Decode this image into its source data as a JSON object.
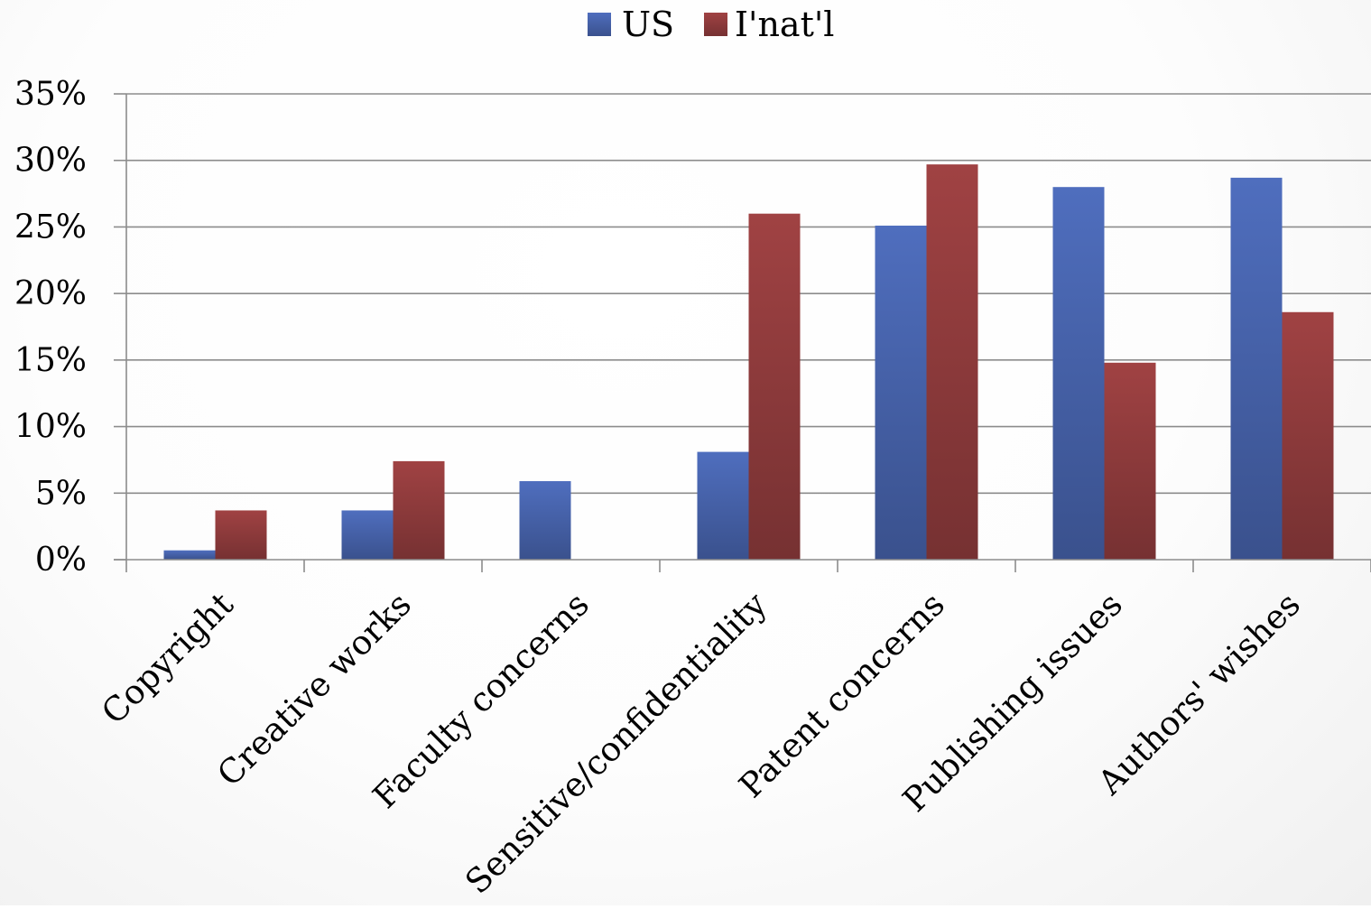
{
  "chart_data": {
    "type": "bar",
    "title": "",
    "xlabel": "",
    "ylabel": "",
    "ylim": [
      0,
      0.35
    ],
    "yticks": [
      0,
      0.05,
      0.1,
      0.15,
      0.2,
      0.25,
      0.3,
      0.35
    ],
    "ytick_labels": [
      "0%",
      "5%",
      "10%",
      "15%",
      "20%",
      "25%",
      "30%",
      "35%"
    ],
    "grid": true,
    "legend_position": "top",
    "categories": [
      "Copyright",
      "Creative works",
      "Faculty concerns",
      "Sensitive/confidentiality",
      "Patent concerns",
      "Publishing issues",
      "Authors' wishes"
    ],
    "series": [
      {
        "name": "US",
        "color": "#4F6EBE",
        "values": [
          0.007,
          0.037,
          0.059,
          0.081,
          0.251,
          0.28,
          0.287
        ]
      },
      {
        "name": "I'nat'l",
        "color": "#A04243",
        "values": [
          0.037,
          0.074,
          0.0,
          0.26,
          0.297,
          0.148,
          0.186
        ]
      }
    ]
  }
}
